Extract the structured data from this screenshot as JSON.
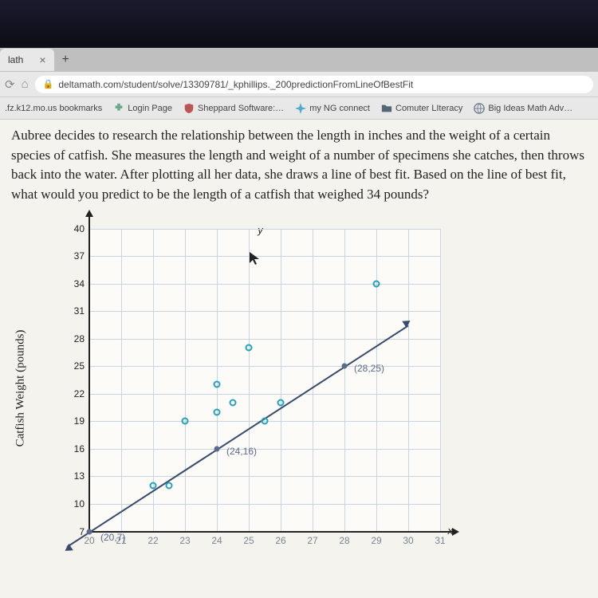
{
  "browser": {
    "tab": {
      "title": "lath",
      "close": "×",
      "new_tab": "+"
    },
    "nav": {
      "reload": "⟳",
      "home": "⌂"
    },
    "url": {
      "lock": "🔒",
      "text": "deltamath.com/student/solve/13309781/_kphillips._200predictionFromLineOfBestFit"
    },
    "bookmarks": {
      "first": ".fz.k12.mo.us bookmarks",
      "items": [
        {
          "icon": "puzzle",
          "label": "Login Page"
        },
        {
          "icon": "shield",
          "label": "Sheppard Software:…"
        },
        {
          "icon": "spark",
          "label": "my NG connect"
        },
        {
          "icon": "folder",
          "label": "Comuter LIteracy"
        },
        {
          "icon": "globe",
          "label": "Big Ideas Math Adv…"
        }
      ]
    }
  },
  "question": "Aubree decides to research the relationship between the length in inches and the weight of a certain species of catfish. She measures the length and weight of a number of specimens she catches, then throws back into the water. After plotting all her data, she draws a line of best fit. Based on the line of best fit, what would you predict to be the length of a catfish that weighed 34 pounds?",
  "chart": {
    "y_axis_label": "Catfish Weight (pounds)",
    "y_var": "y",
    "x_var": "x",
    "y_ticks": [
      7,
      10,
      13,
      16,
      19,
      22,
      25,
      28,
      31,
      34,
      37,
      40
    ],
    "x_ticks": [
      20,
      21,
      22,
      23,
      24,
      25,
      26,
      27,
      28,
      29,
      30,
      31
    ],
    "y_range": [
      7,
      40
    ],
    "x_range": [
      20,
      31
    ],
    "grid_color": "#c8d4e0",
    "marker_color": "#2aa0b8",
    "line_color": "#3a4a6a",
    "scatter": [
      {
        "x": 22,
        "y": 12
      },
      {
        "x": 22.5,
        "y": 12
      },
      {
        "x": 23,
        "y": 19
      },
      {
        "x": 24,
        "y": 23
      },
      {
        "x": 24,
        "y": 20
      },
      {
        "x": 24.5,
        "y": 21
      },
      {
        "x": 25,
        "y": 27
      },
      {
        "x": 25.5,
        "y": 19
      },
      {
        "x": 26,
        "y": 21
      },
      {
        "x": 29,
        "y": 34
      }
    ],
    "line_points": [
      {
        "x": 20,
        "y": 7,
        "label": "(20,7)",
        "label_dx": 14,
        "label_dy": 0
      },
      {
        "x": 24,
        "y": 16,
        "label": "(24,16)",
        "label_dx": 12,
        "label_dy": -4
      },
      {
        "x": 28,
        "y": 25,
        "label": "(28,25)",
        "label_dx": 12,
        "label_dy": -4
      }
    ],
    "line_extent": {
      "x1": 19.3,
      "y1": 5.4,
      "x2": 30,
      "y2": 29.5
    }
  }
}
